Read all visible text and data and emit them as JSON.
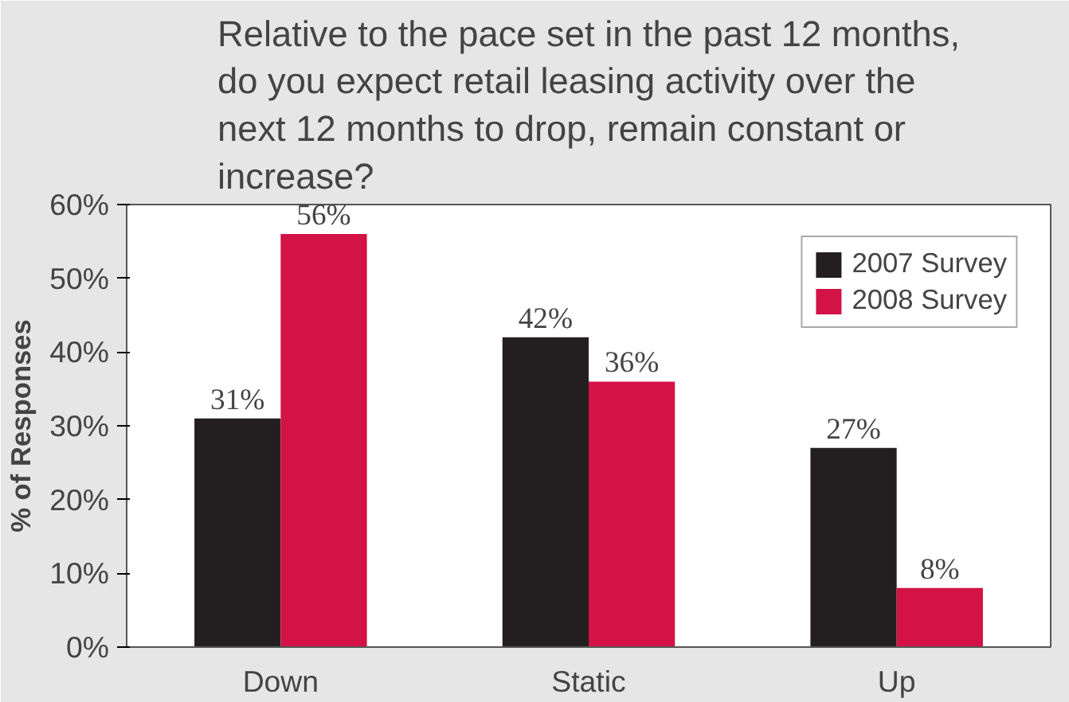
{
  "chart_data": {
    "type": "bar",
    "title": "Relative to the pace set in the past 12 months, do you expect retail leasing activity over the next 12 months to drop, remain constant or increase?",
    "ylabel": "% of Responses",
    "categories": [
      "Down",
      "Static",
      "Up"
    ],
    "series": [
      {
        "name": "2007 Survey",
        "color": "#231f20",
        "values": [
          31,
          42,
          27
        ],
        "value_labels": [
          "31%",
          "42%",
          "27%"
        ]
      },
      {
        "name": "2008 Survey",
        "color": "#d31245",
        "values": [
          56,
          36,
          8
        ],
        "value_labels": [
          "56%",
          "36%",
          "8%"
        ]
      }
    ],
    "ylim": [
      0,
      60
    ],
    "yticks": [
      {
        "value": 0,
        "label": "0%"
      },
      {
        "value": 10,
        "label": "10%"
      },
      {
        "value": 20,
        "label": "20%"
      },
      {
        "value": 30,
        "label": "30%"
      },
      {
        "value": 40,
        "label": "40%"
      },
      {
        "value": 50,
        "label": "50%"
      },
      {
        "value": 60,
        "label": "60%"
      }
    ],
    "grid": false,
    "legend": "top right"
  }
}
